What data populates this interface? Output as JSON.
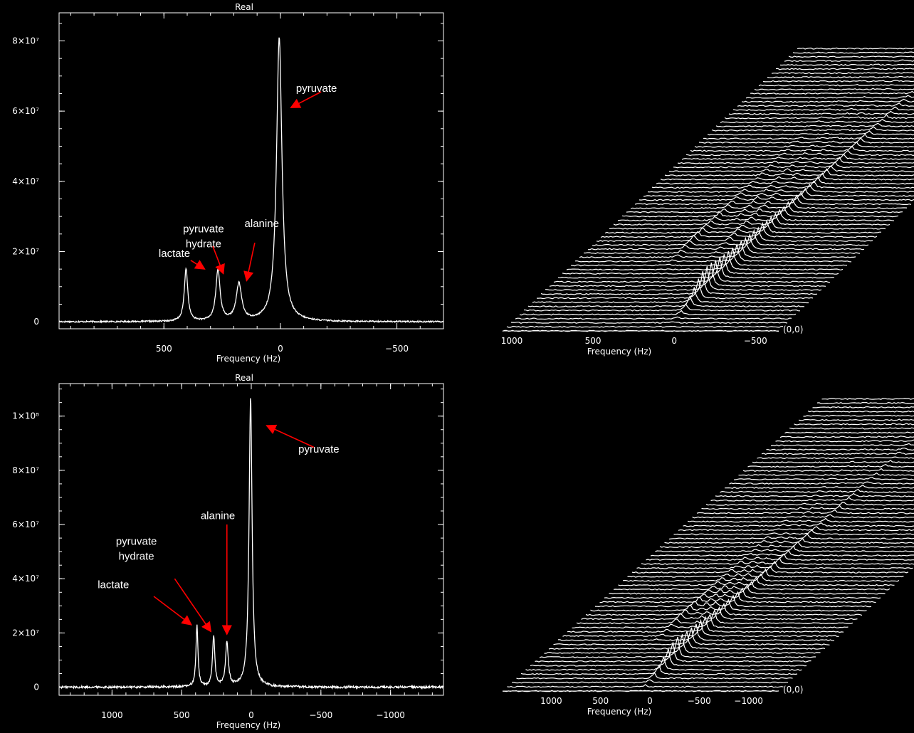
{
  "colors": {
    "background": "#000000",
    "trace": "#ffffff",
    "arrow": "#ff0000"
  },
  "chart_data": [
    {
      "type": "line",
      "panel": "top-left",
      "title": "Real",
      "xlabel": "Frequency (Hz)",
      "ylabel": "",
      "x_reversed": true,
      "xlim": [
        950,
        -700
      ],
      "ylim": [
        -2000000,
        88000000
      ],
      "xticks": [
        {
          "value": 500,
          "label": "500"
        },
        {
          "value": 0,
          "label": "0"
        },
        {
          "value": -500,
          "label": "−500"
        }
      ],
      "yticks": [
        {
          "value": 0,
          "label": "0"
        },
        {
          "value": 20000000,
          "label": "2×10⁷"
        },
        {
          "value": 40000000,
          "label": "4×10⁷"
        },
        {
          "value": 60000000,
          "label": "6×10⁷"
        },
        {
          "value": 80000000,
          "label": "8×10⁷"
        }
      ],
      "grid": false,
      "baseline": 0,
      "noise": 200000,
      "peaks": [
        {
          "name": "lactate",
          "x": 405,
          "height": 15000000,
          "width": 9
        },
        {
          "name": "pyruvate hydrate",
          "x": 268,
          "height": 14500000,
          "width": 11
        },
        {
          "name": "alanine",
          "x": 178,
          "height": 10500000,
          "width": 14
        },
        {
          "name": "pyruvate",
          "x": 5,
          "height": 81000000,
          "width": 14
        }
      ],
      "annotations": [
        {
          "lines": [
            "lactate"
          ],
          "text_at": [
            455,
            18500000
          ],
          "arrow_from": [
            385,
            17500000
          ],
          "arrow_to": [
            325,
            15000000
          ]
        },
        {
          "lines": [
            "pyruvate",
            "hydrate"
          ],
          "text_at": [
            330,
            25500000
          ],
          "arrow_from": [
            290,
            21500000
          ],
          "arrow_to": [
            245,
            13700000
          ]
        },
        {
          "lines": [
            "alanine"
          ],
          "text_at": [
            80,
            27000000
          ],
          "arrow_from": [
            110,
            22500000
          ],
          "arrow_to": [
            145,
            11700000
          ]
        },
        {
          "lines": [
            "pyruvate"
          ],
          "text_at": [
            -155,
            65500000
          ],
          "arrow_from": [
            -175,
            65500000
          ],
          "arrow_to": [
            -45,
            61000000
          ]
        }
      ]
    },
    {
      "type": "line",
      "panel": "bottom-left",
      "title": "Real",
      "xlabel": "Frequency (Hz)",
      "ylabel": "",
      "x_reversed": true,
      "xlim": [
        1380,
        -1380
      ],
      "ylim": [
        -3000000,
        112000000
      ],
      "xticks": [
        {
          "value": 1000,
          "label": "1000"
        },
        {
          "value": 500,
          "label": "500"
        },
        {
          "value": 0,
          "label": "0"
        },
        {
          "value": -500,
          "label": "−500"
        },
        {
          "value": -1000,
          "label": "−1000"
        }
      ],
      "yticks": [
        {
          "value": 0,
          "label": "0"
        },
        {
          "value": 20000000,
          "label": "2×10⁷"
        },
        {
          "value": 40000000,
          "label": "4×10⁷"
        },
        {
          "value": 60000000,
          "label": "6×10⁷"
        },
        {
          "value": 80000000,
          "label": "8×10⁷"
        },
        {
          "value": 100000000,
          "label": "1×10⁸"
        }
      ],
      "grid": false,
      "baseline": 0,
      "noise": 400000,
      "peaks": [
        {
          "name": "lactate",
          "x": 390,
          "height": 22500000,
          "width": 9
        },
        {
          "name": "pyruvate hydrate",
          "x": 270,
          "height": 18500000,
          "width": 10
        },
        {
          "name": "alanine",
          "x": 175,
          "height": 16000000,
          "width": 12
        },
        {
          "name": "pyruvate",
          "x": 5,
          "height": 107000000,
          "width": 13
        }
      ],
      "annotations": [
        {
          "lines": [
            "lactate"
          ],
          "text_at": [
            990,
            36500000
          ],
          "arrow_from": [
            700,
            33500000
          ],
          "arrow_to": [
            430,
            23000000
          ]
        },
        {
          "lines": [
            "pyruvate",
            "hydrate"
          ],
          "text_at": [
            825,
            52500000
          ],
          "arrow_from": [
            550,
            40000000
          ],
          "arrow_to": [
            290,
            20500000
          ]
        },
        {
          "lines": [
            "alanine"
          ],
          "text_at": [
            240,
            62000000
          ],
          "arrow_from": [
            175,
            60000000
          ],
          "arrow_to": [
            175,
            19500000
          ]
        },
        {
          "lines": [
            "pyruvate"
          ],
          "text_at": [
            -485,
            86500000
          ],
          "arrow_from": [
            -450,
            88500000
          ],
          "arrow_to": [
            -110,
            96500000
          ]
        }
      ]
    },
    {
      "type": "line",
      "panel": "top-right",
      "title": "",
      "subtype": "stacked-waterfall",
      "xlabel": "Frequency (Hz)",
      "x_reversed": true,
      "xlim": [
        1000,
        -700
      ],
      "xticks": [
        {
          "value": 1000,
          "label": "1000"
        },
        {
          "value": 500,
          "label": "500"
        },
        {
          "value": 0,
          "label": "0"
        },
        {
          "value": -500,
          "label": "−500"
        }
      ],
      "origin_label": "(0,0)",
      "traces": 70,
      "series": [
        {
          "name": "lactate",
          "x": 400,
          "peak_trace": 22,
          "max": 8,
          "decay": 40,
          "width": 12
        },
        {
          "name": "pyruvate hydrate",
          "x": 270,
          "peak_trace": 30,
          "max": 5,
          "decay": 40,
          "width": 12
        },
        {
          "name": "alanine",
          "x": 180,
          "peak_trace": 24,
          "max": 6,
          "decay": 40,
          "width": 14
        },
        {
          "name": "pyruvate",
          "x": 5,
          "peak_trace": 10,
          "max": 34,
          "decay": 45,
          "width": 12
        }
      ]
    },
    {
      "type": "line",
      "panel": "bottom-right",
      "title": "",
      "subtype": "stacked-waterfall",
      "xlabel": "Frequency (Hz)",
      "x_reversed": true,
      "xlim": [
        1400,
        -1400
      ],
      "xticks": [
        {
          "value": 1000,
          "label": "1000"
        },
        {
          "value": 500,
          "label": "500"
        },
        {
          "value": 0,
          "label": "0"
        },
        {
          "value": -500,
          "label": "−500"
        },
        {
          "value": -1000,
          "label": "−1000"
        }
      ],
      "origin_label": "(0,0)",
      "traces": 70,
      "series": [
        {
          "name": "lactate",
          "x": 390,
          "peak_trace": 18,
          "max": 9,
          "decay": 35,
          "width": 18
        },
        {
          "name": "pyruvate hydrate",
          "x": 270,
          "peak_trace": 22,
          "max": 6,
          "decay": 35,
          "width": 18
        },
        {
          "name": "alanine",
          "x": 175,
          "peak_trace": 20,
          "max": 6,
          "decay": 35,
          "width": 18
        },
        {
          "name": "pyruvate",
          "x": 5,
          "peak_trace": 8,
          "max": 30,
          "decay": 40,
          "width": 18
        }
      ]
    }
  ]
}
